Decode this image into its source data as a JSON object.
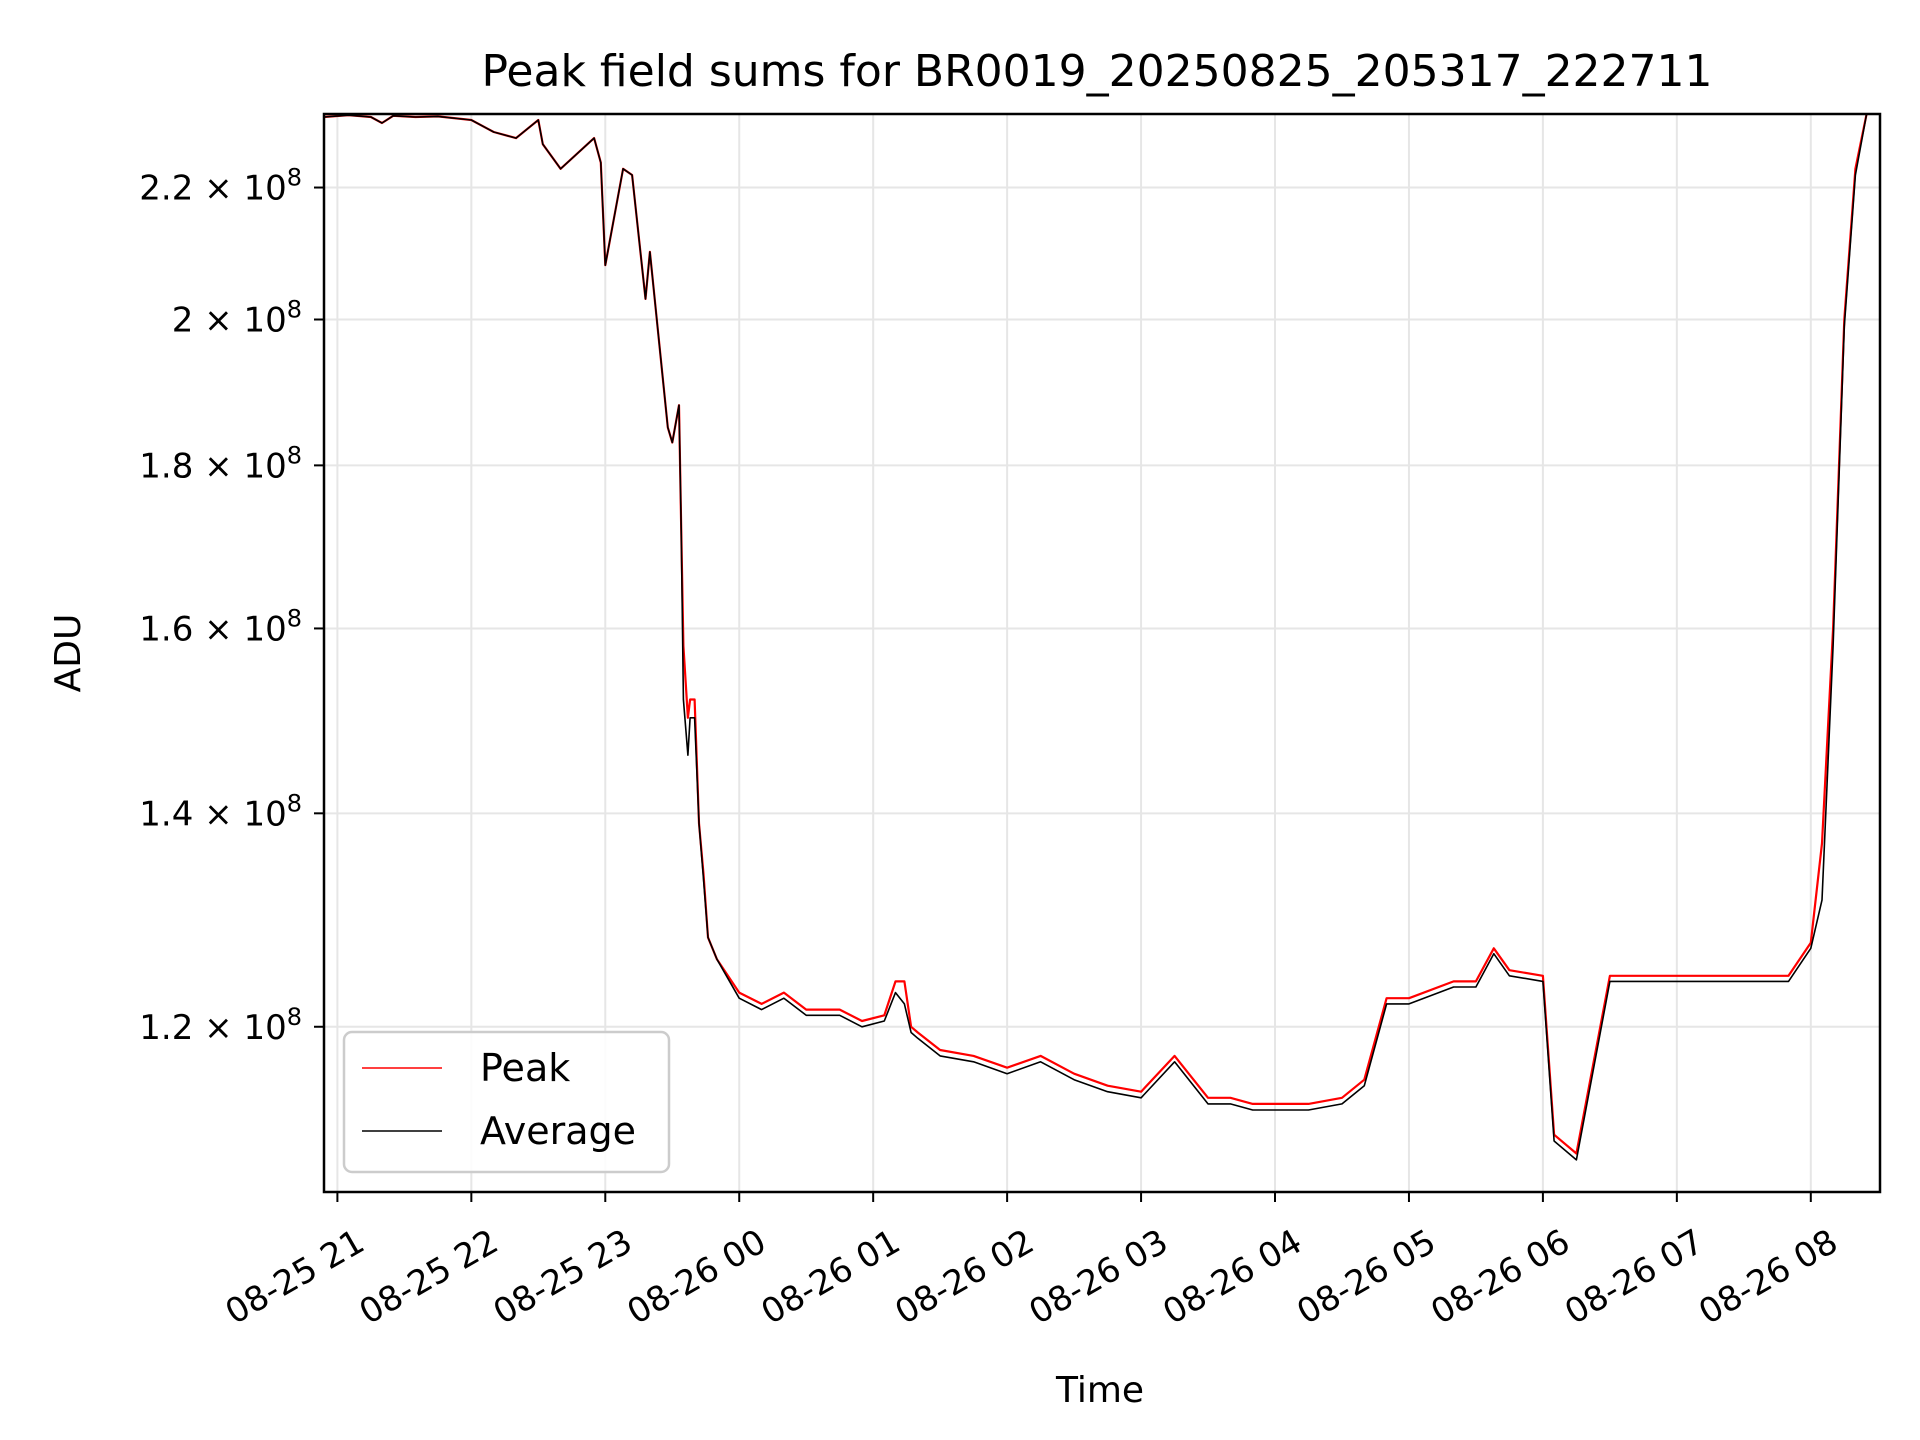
{
  "chart_data": {
    "type": "line",
    "title": "Peak field sums for BR0019_20250825_205317_222711",
    "xlabel": "Time",
    "ylabel": "ADU",
    "y_scale": "log",
    "xlim": [
      "2025-08-25 20:54",
      "2025-08-26 08:31"
    ],
    "ylim": [
      106500000,
      232000000
    ],
    "grid": true,
    "legend_position": "lower-left",
    "x_ticks": [
      {
        "t": "2025-08-25 21:00",
        "label": "08-25 21"
      },
      {
        "t": "2025-08-25 22:00",
        "label": "08-25 22"
      },
      {
        "t": "2025-08-25 23:00",
        "label": "08-25 23"
      },
      {
        "t": "2025-08-26 00:00",
        "label": "08-26 00"
      },
      {
        "t": "2025-08-26 01:00",
        "label": "08-26 01"
      },
      {
        "t": "2025-08-26 02:00",
        "label": "08-26 02"
      },
      {
        "t": "2025-08-26 03:00",
        "label": "08-26 03"
      },
      {
        "t": "2025-08-26 04:00",
        "label": "08-26 04"
      },
      {
        "t": "2025-08-26 05:00",
        "label": "08-26 05"
      },
      {
        "t": "2025-08-26 06:00",
        "label": "08-26 06"
      },
      {
        "t": "2025-08-26 07:00",
        "label": "08-26 07"
      },
      {
        "t": "2025-08-26 08:00",
        "label": "08-26 08"
      }
    ],
    "y_ticks": [
      {
        "value": 120000000,
        "mantissa": "1.2",
        "exp": "8"
      },
      {
        "value": 140000000,
        "mantissa": "1.4",
        "exp": "8"
      },
      {
        "value": 160000000,
        "mantissa": "1.6",
        "exp": "8"
      },
      {
        "value": 180000000,
        "mantissa": "1.8",
        "exp": "8"
      },
      {
        "value": 200000000,
        "mantissa": "2",
        "exp": "8"
      },
      {
        "value": 220000000,
        "mantissa": "2.2",
        "exp": "8"
      }
    ],
    "series": [
      {
        "name": "Peak",
        "color": "#ff0000",
        "x": [
          "2025-08-25 20:54",
          "2025-08-25 21:05",
          "2025-08-25 21:15",
          "2025-08-25 21:20",
          "2025-08-25 21:25",
          "2025-08-25 21:35",
          "2025-08-25 21:45",
          "2025-08-25 22:00",
          "2025-08-25 22:10",
          "2025-08-25 22:20",
          "2025-08-25 22:30",
          "2025-08-25 22:32",
          "2025-08-25 22:40",
          "2025-08-25 22:55",
          "2025-08-25 22:58",
          "2025-08-25 23:00",
          "2025-08-25 23:08",
          "2025-08-25 23:12",
          "2025-08-25 23:18",
          "2025-08-25 23:20",
          "2025-08-25 23:28",
          "2025-08-25 23:30",
          "2025-08-25 23:33",
          "2025-08-25 23:34",
          "2025-08-25 23:35",
          "2025-08-25 23:37",
          "2025-08-25 23:38",
          "2025-08-25 23:40",
          "2025-08-25 23:42",
          "2025-08-25 23:44",
          "2025-08-25 23:46",
          "2025-08-25 23:50",
          "2025-08-26 00:00",
          "2025-08-26 00:10",
          "2025-08-26 00:20",
          "2025-08-26 00:30",
          "2025-08-26 00:45",
          "2025-08-26 00:55",
          "2025-08-26 01:05",
          "2025-08-26 01:10",
          "2025-08-26 01:14",
          "2025-08-26 01:17",
          "2025-08-26 01:20",
          "2025-08-26 01:30",
          "2025-08-26 01:45",
          "2025-08-26 02:00",
          "2025-08-26 02:15",
          "2025-08-26 02:30",
          "2025-08-26 02:45",
          "2025-08-26 03:00",
          "2025-08-26 03:15",
          "2025-08-26 03:30",
          "2025-08-26 03:40",
          "2025-08-26 03:50",
          "2025-08-26 04:00",
          "2025-08-26 04:15",
          "2025-08-26 04:30",
          "2025-08-26 04:40",
          "2025-08-26 04:50",
          "2025-08-26 05:00",
          "2025-08-26 05:20",
          "2025-08-26 05:30",
          "2025-08-26 05:38",
          "2025-08-26 05:45",
          "2025-08-26 06:00",
          "2025-08-26 06:05",
          "2025-08-26 06:15",
          "2025-08-26 06:30",
          "2025-08-26 06:45",
          "2025-08-26 07:00",
          "2025-08-26 07:15",
          "2025-08-26 07:30",
          "2025-08-26 07:50",
          "2025-08-26 08:00",
          "2025-08-26 08:05",
          "2025-08-26 08:10",
          "2025-08-26 08:15",
          "2025-08-26 08:20",
          "2025-08-26 08:25"
        ],
        "values": [
          231500000,
          231800000,
          231500000,
          230500000,
          231700000,
          231500000,
          231600000,
          231000000,
          229000000,
          228000000,
          231000000,
          227000000,
          223000000,
          228000000,
          224000000,
          208000000,
          223000000,
          222000000,
          203000000,
          210000000,
          185000000,
          183000000,
          188000000,
          172000000,
          158000000,
          150000000,
          152000000,
          152000000,
          139000000,
          134000000,
          128000000,
          126000000,
          123000000,
          122000000,
          123000000,
          121500000,
          121500000,
          120500000,
          121000000,
          124000000,
          124000000,
          120000000,
          119500000,
          118000000,
          117500000,
          116500000,
          117500000,
          116000000,
          115000000,
          114500000,
          117500000,
          114000000,
          114000000,
          113500000,
          113500000,
          113500000,
          114000000,
          115500000,
          122500000,
          122500000,
          124000000,
          124000000,
          127000000,
          125000000,
          124500000,
          111000000,
          109500000,
          124500000,
          124500000,
          124500000,
          124500000,
          124500000,
          124500000,
          127500000,
          137000000,
          160000000,
          200000000,
          223000000,
          232000000
        ]
      },
      {
        "name": "Average",
        "color": "#000000",
        "x": [
          "2025-08-25 20:54",
          "2025-08-25 21:05",
          "2025-08-25 21:15",
          "2025-08-25 21:20",
          "2025-08-25 21:25",
          "2025-08-25 21:35",
          "2025-08-25 21:45",
          "2025-08-25 22:00",
          "2025-08-25 22:10",
          "2025-08-25 22:20",
          "2025-08-25 22:30",
          "2025-08-25 22:32",
          "2025-08-25 22:40",
          "2025-08-25 22:55",
          "2025-08-25 22:58",
          "2025-08-25 23:00",
          "2025-08-25 23:08",
          "2025-08-25 23:12",
          "2025-08-25 23:18",
          "2025-08-25 23:20",
          "2025-08-25 23:28",
          "2025-08-25 23:30",
          "2025-08-25 23:33",
          "2025-08-25 23:34",
          "2025-08-25 23:35",
          "2025-08-25 23:37",
          "2025-08-25 23:38",
          "2025-08-25 23:40",
          "2025-08-25 23:42",
          "2025-08-25 23:44",
          "2025-08-25 23:46",
          "2025-08-25 23:50",
          "2025-08-26 00:00",
          "2025-08-26 00:10",
          "2025-08-26 00:20",
          "2025-08-26 00:30",
          "2025-08-26 00:45",
          "2025-08-26 00:55",
          "2025-08-26 01:05",
          "2025-08-26 01:10",
          "2025-08-26 01:14",
          "2025-08-26 01:17",
          "2025-08-26 01:20",
          "2025-08-26 01:30",
          "2025-08-26 01:45",
          "2025-08-26 02:00",
          "2025-08-26 02:15",
          "2025-08-26 02:30",
          "2025-08-26 02:45",
          "2025-08-26 03:00",
          "2025-08-26 03:15",
          "2025-08-26 03:30",
          "2025-08-26 03:40",
          "2025-08-26 03:50",
          "2025-08-26 04:00",
          "2025-08-26 04:15",
          "2025-08-26 04:30",
          "2025-08-26 04:40",
          "2025-08-26 04:50",
          "2025-08-26 05:00",
          "2025-08-26 05:20",
          "2025-08-26 05:30",
          "2025-08-26 05:38",
          "2025-08-26 05:45",
          "2025-08-26 06:00",
          "2025-08-26 06:05",
          "2025-08-26 06:15",
          "2025-08-26 06:30",
          "2025-08-26 06:45",
          "2025-08-26 07:00",
          "2025-08-26 07:15",
          "2025-08-26 07:30",
          "2025-08-26 07:50",
          "2025-08-26 08:00",
          "2025-08-26 08:05",
          "2025-08-26 08:10",
          "2025-08-26 08:15",
          "2025-08-26 08:20",
          "2025-08-26 08:25"
        ],
        "values": [
          231500000,
          231800000,
          231500000,
          230500000,
          231700000,
          231500000,
          231600000,
          231000000,
          229000000,
          228000000,
          231000000,
          227000000,
          223000000,
          228000000,
          224000000,
          208000000,
          223000000,
          222000000,
          203000000,
          210000000,
          185000000,
          183000000,
          188000000,
          172000000,
          152000000,
          146000000,
          150000000,
          150000000,
          139000000,
          133500000,
          128000000,
          126000000,
          122500000,
          121500000,
          122500000,
          121000000,
          121000000,
          120000000,
          120500000,
          123000000,
          122000000,
          119500000,
          119000000,
          117500000,
          117000000,
          116000000,
          117000000,
          115500000,
          114500000,
          114000000,
          117000000,
          113500000,
          113500000,
          113000000,
          113000000,
          113000000,
          113500000,
          115000000,
          122000000,
          122000000,
          123500000,
          123500000,
          126500000,
          124500000,
          124000000,
          110500000,
          109000000,
          124000000,
          124000000,
          124000000,
          124000000,
          124000000,
          124000000,
          127000000,
          131500000,
          158000000,
          199000000,
          222000000,
          232000000
        ]
      }
    ]
  }
}
